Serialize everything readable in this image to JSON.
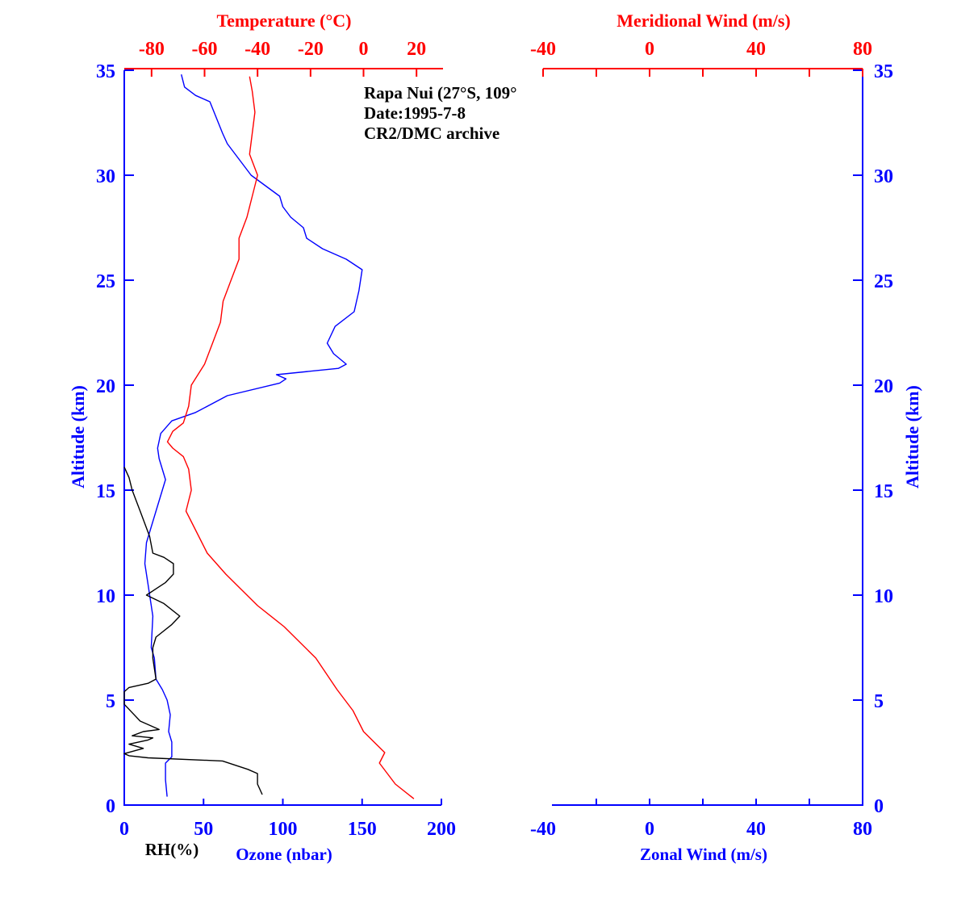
{
  "colors": {
    "blue": "#0000ff",
    "red": "#ff0000",
    "black": "#000000"
  },
  "annotation": [
    "Rapa Nui (27°S, 109°",
    "Date:1995-7-8",
    "CR2/DMC archive"
  ],
  "chart_data": [
    {
      "type": "line",
      "panel": "left",
      "ylabel": "Altitude (km)",
      "ylim": [
        0,
        35
      ],
      "yticks": [
        "0",
        "5",
        "10",
        "15",
        "20",
        "25",
        "30",
        "35"
      ],
      "bottom_axis": {
        "label": "Ozone (nbar)",
        "secondary_label": "RH(%)",
        "xlim": [
          0,
          200
        ],
        "ticks": [
          "0",
          "50",
          "100",
          "150",
          "200"
        ]
      },
      "top_axis": {
        "label": "Temperature (°C)",
        "xlim": [
          -90,
          30
        ],
        "ticks": [
          "-80",
          "-60",
          "-40",
          "-20",
          "0",
          "20"
        ]
      },
      "series": [
        {
          "name": "Ozone (nbar)",
          "axis": "bottom",
          "color": "#0000ff",
          "points": [
            [
              27,
              0.4
            ],
            [
              26,
              1.2
            ],
            [
              26,
              2.0
            ],
            [
              30,
              2.3
            ],
            [
              30,
              3.0
            ],
            [
              28,
              3.5
            ],
            [
              29,
              4.3
            ],
            [
              27,
              5.0
            ],
            [
              24,
              5.5
            ],
            [
              20,
              6.0
            ],
            [
              19,
              7.0
            ],
            [
              17,
              7.5
            ],
            [
              18,
              9.0
            ],
            [
              15,
              10.5
            ],
            [
              13,
              11.5
            ],
            [
              14,
              12.5
            ],
            [
              20,
              14.0
            ],
            [
              26,
              15.5
            ],
            [
              22,
              16.5
            ],
            [
              21,
              17.0
            ],
            [
              23,
              17.7
            ],
            [
              30,
              18.3
            ],
            [
              45,
              18.7
            ],
            [
              65,
              19.5
            ],
            [
              98,
              20.1
            ],
            [
              102,
              20.3
            ],
            [
              96,
              20.5
            ],
            [
              135,
              20.8
            ],
            [
              140,
              21.0
            ],
            [
              132,
              21.5
            ],
            [
              128,
              22.0
            ],
            [
              133,
              22.8
            ],
            [
              145,
              23.5
            ],
            [
              148,
              24.5
            ],
            [
              150,
              25.5
            ],
            [
              140,
              26.0
            ],
            [
              125,
              26.5
            ],
            [
              115,
              27.0
            ],
            [
              113,
              27.5
            ],
            [
              105,
              28.0
            ],
            [
              100,
              28.5
            ],
            [
              98,
              29.0
            ],
            [
              80,
              30.0
            ],
            [
              65,
              31.5
            ],
            [
              62,
              32.0
            ],
            [
              54,
              33.5
            ],
            [
              45,
              33.8
            ],
            [
              38,
              34.2
            ],
            [
              36,
              34.8
            ]
          ]
        },
        {
          "name": "RH(%)",
          "axis": "bottom",
          "color": "#000000",
          "points": [
            [
              87,
              0.5
            ],
            [
              84,
              1.0
            ],
            [
              84,
              1.5
            ],
            [
              78,
              1.7
            ],
            [
              62,
              2.1
            ],
            [
              15,
              2.25
            ],
            [
              3,
              2.35
            ],
            [
              0,
              2.45
            ],
            [
              12,
              2.7
            ],
            [
              3,
              2.9
            ],
            [
              15,
              3.1
            ],
            [
              18,
              3.2
            ],
            [
              5,
              3.3
            ],
            [
              12,
              3.5
            ],
            [
              22,
              3.6
            ],
            [
              10,
              4.0
            ],
            [
              0,
              4.8
            ],
            [
              0,
              5.4
            ],
            [
              3,
              5.6
            ],
            [
              15,
              5.8
            ],
            [
              20,
              6.0
            ],
            [
              18,
              7.0
            ],
            [
              18,
              7.5
            ],
            [
              20,
              8.0
            ],
            [
              30,
              8.6
            ],
            [
              35,
              9.0
            ],
            [
              25,
              9.6
            ],
            [
              14,
              10.0
            ],
            [
              20,
              10.3
            ],
            [
              26,
              10.6
            ],
            [
              31,
              11.0
            ],
            [
              31,
              11.5
            ],
            [
              25,
              11.8
            ],
            [
              18,
              12.0
            ],
            [
              16,
              12.8
            ],
            [
              10,
              14.0
            ],
            [
              5,
              15.0
            ],
            [
              3,
              15.6
            ],
            [
              0,
              16.1
            ]
          ]
        },
        {
          "name": "Temperature (°C)",
          "axis": "top",
          "color": "#ff0000",
          "points": [
            [
              19,
              0.3
            ],
            [
              12,
              1.0
            ],
            [
              6,
              2.0
            ],
            [
              8,
              2.5
            ],
            [
              4,
              3.0
            ],
            [
              0,
              3.5
            ],
            [
              -4,
              4.5
            ],
            [
              -10,
              5.5
            ],
            [
              -18,
              7.0
            ],
            [
              -30,
              8.5
            ],
            [
              -40,
              9.5
            ],
            [
              -52,
              11.0
            ],
            [
              -59,
              12.0
            ],
            [
              -65,
              13.5
            ],
            [
              -67,
              14.0
            ],
            [
              -65,
              15.0
            ],
            [
              -66,
              16.0
            ],
            [
              -68,
              16.6
            ],
            [
              -72,
              17.0
            ],
            [
              -74,
              17.3
            ],
            [
              -72,
              17.8
            ],
            [
              -68,
              18.2
            ],
            [
              -66,
              19.0
            ],
            [
              -65,
              20.0
            ],
            [
              -60,
              21.0
            ],
            [
              -57,
              22.0
            ],
            [
              -54,
              23.0
            ],
            [
              -53,
              24.0
            ],
            [
              -50,
              25.0
            ],
            [
              -47,
              26.0
            ],
            [
              -47,
              27.0
            ],
            [
              -44,
              28.0
            ],
            [
              -42,
              29.0
            ],
            [
              -40,
              30.0
            ],
            [
              -43,
              31.0
            ],
            [
              -42,
              32.0
            ],
            [
              -41,
              33.0
            ],
            [
              -42,
              34.0
            ],
            [
              -43,
              34.7
            ]
          ]
        }
      ]
    },
    {
      "type": "line",
      "panel": "right",
      "ylabel": "Altitude (km)",
      "ylim": [
        0,
        35
      ],
      "yticks": [
        "0",
        "5",
        "10",
        "15",
        "20",
        "25",
        "30",
        "35"
      ],
      "bottom_axis": {
        "label": "Zonal Wind (m/s)",
        "xlim": [
          -40,
          80
        ],
        "ticks": [
          "-40",
          "0",
          "40",
          "80"
        ]
      },
      "top_axis": {
        "label": "Meridional Wind (m/s)",
        "xlim": [
          -40,
          80
        ],
        "ticks": [
          "-40",
          "0",
          "40",
          "80"
        ]
      },
      "series": []
    }
  ]
}
